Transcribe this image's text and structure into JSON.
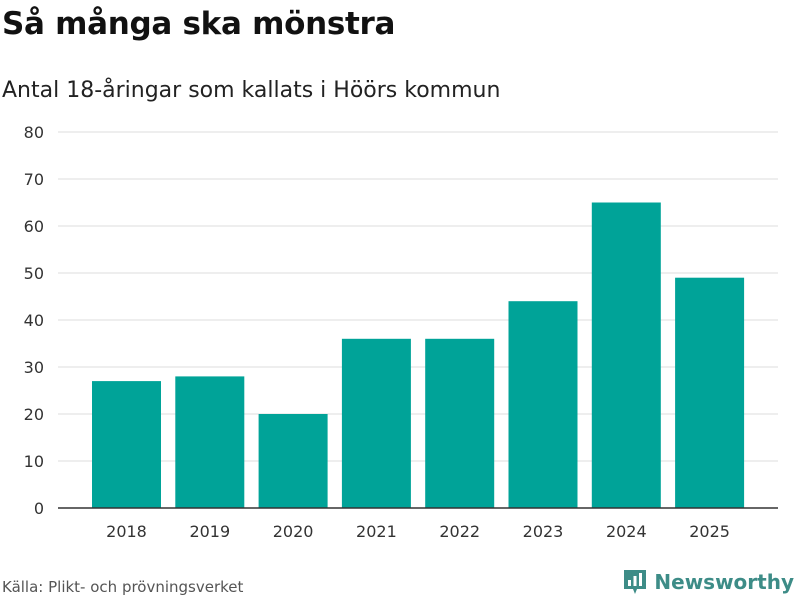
{
  "title": "Så många ska mönstra",
  "subtitle": "Antal 18-åringar som kallats i Höörs kommun",
  "source": "Källa: Plikt- och prövningsverket",
  "brand": {
    "name": "Newsworthy",
    "icon": "bar-chart-pin-icon",
    "color": "#3d8c87"
  },
  "colors": {
    "bar": "#00a398",
    "grid": "#dddddd",
    "axis": "#333333"
  },
  "chart_data": {
    "type": "bar",
    "categories": [
      "2018",
      "2019",
      "2020",
      "2021",
      "2022",
      "2023",
      "2024",
      "2025"
    ],
    "values": [
      27,
      28,
      20,
      36,
      36,
      44,
      65,
      49
    ],
    "ylim": [
      0,
      80
    ],
    "yticks": [
      0,
      10,
      20,
      30,
      40,
      50,
      60,
      70,
      80
    ],
    "xlabel": "",
    "ylabel": "",
    "grid": "horizontal",
    "legend": "none"
  }
}
